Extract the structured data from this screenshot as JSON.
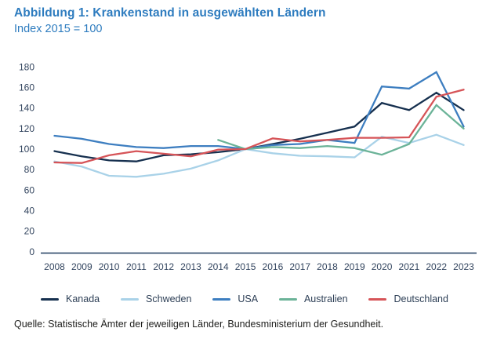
{
  "header": {
    "title": "Abbildung 1: Krankenstand in ausgewählten Ländern",
    "subtitle": "Index 2015 = 100"
  },
  "footer": {
    "source": "Quelle: Statistische Ämter der jeweiligen Länder, Bundesministerium der Gesundheit."
  },
  "style_colors": {
    "title_blue": "#2e7cbf",
    "axis_text": "#33455f",
    "axis_line": "#1e3a5f",
    "legend_text": "#2c3e55"
  },
  "chart_data": {
    "type": "line",
    "title": "Abbildung 1: Krankenstand in ausgewählten Ländern",
    "subtitle": "Index 2015 = 100",
    "x": [
      2008,
      2009,
      2010,
      2011,
      2012,
      2013,
      2014,
      2015,
      2016,
      2017,
      2018,
      2019,
      2020,
      2021,
      2022,
      2023
    ],
    "xlabel": "",
    "ylabel": "",
    "ylim": [
      0,
      180
    ],
    "ytick_step": 20,
    "grid": false,
    "legend_position": "bottom",
    "series": [
      {
        "name": "Kanada",
        "color": "#16304f",
        "values": [
          98,
          93,
          89,
          88,
          94,
          95,
          97,
          100,
          105,
          110,
          116,
          122,
          145,
          138,
          155,
          138
        ]
      },
      {
        "name": "Schweden",
        "color": "#a9d2e8",
        "values": [
          88,
          83,
          74,
          73,
          76,
          81,
          89,
          100,
          96,
          93.5,
          93,
          92,
          112,
          106,
          114,
          104
        ]
      },
      {
        "name": "USA",
        "color": "#3d7ec0",
        "values": [
          113,
          110,
          105,
          102,
          101,
          103,
          103,
          100,
          104,
          105,
          109,
          106,
          161,
          159,
          175,
          122
        ]
      },
      {
        "name": "Australien",
        "color": "#6bb398",
        "values": [
          null,
          null,
          null,
          null,
          null,
          null,
          109,
          100,
          102,
          101,
          103,
          101,
          94.5,
          105,
          143,
          120
        ]
      },
      {
        "name": "Deutschland",
        "color": "#d65458",
        "values": [
          87,
          86.5,
          94,
          98,
          95.5,
          93,
          99.5,
          100,
          110.5,
          107.5,
          109,
          111,
          111,
          111.5,
          151,
          158
        ]
      }
    ]
  }
}
